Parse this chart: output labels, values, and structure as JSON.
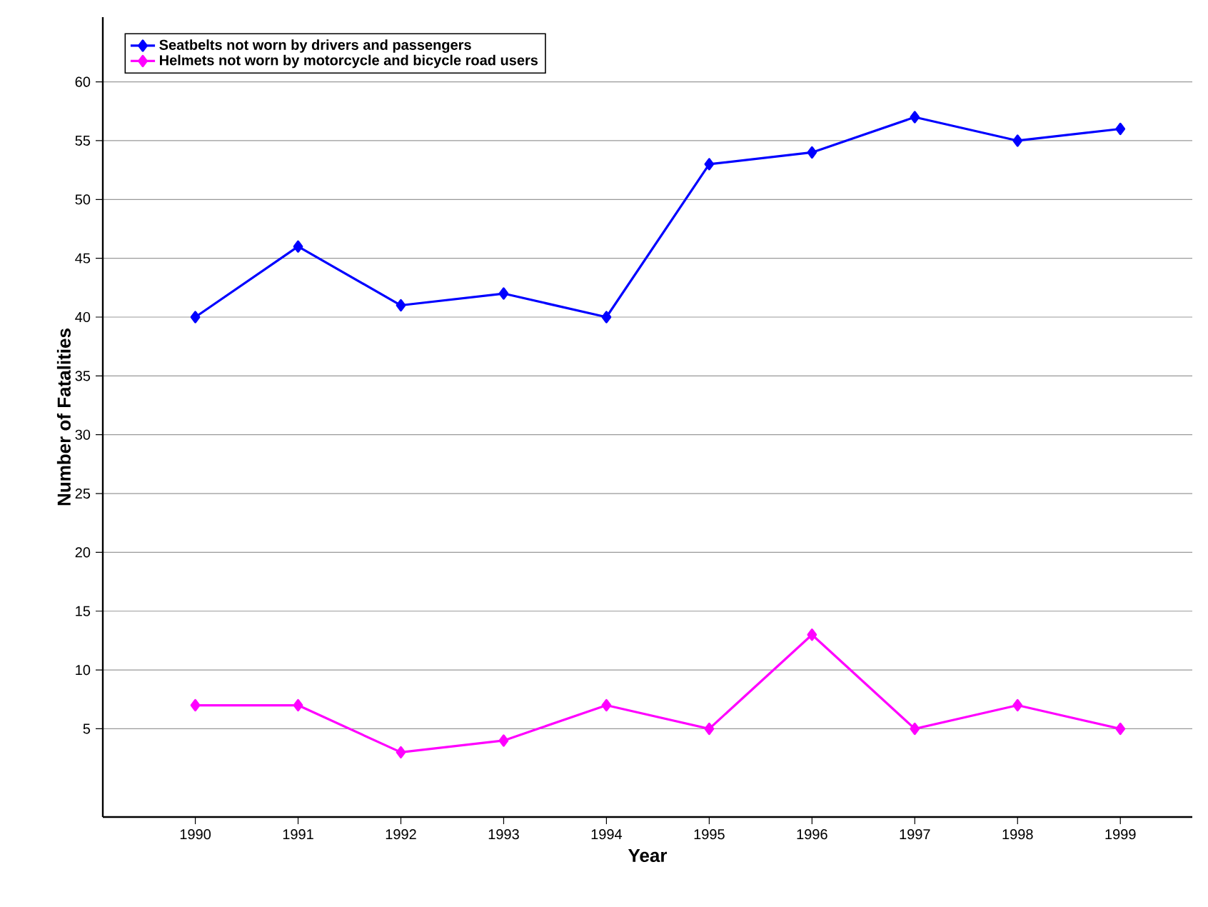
{
  "chart_data": {
    "type": "line",
    "xlabel": "Year",
    "ylabel": "Number of Fatalities",
    "categories": [
      "1990",
      "1991",
      "1992",
      "1993",
      "1994",
      "1995",
      "1996",
      "1997",
      "1998",
      "1999"
    ],
    "series": [
      {
        "name": "Seatbelts not worn by drivers and passengers",
        "color": "#0000ff",
        "values": [
          40,
          46,
          41,
          42,
          40,
          53,
          54,
          57,
          55,
          56
        ]
      },
      {
        "name": "Helmets not worn by motorcycle and bicycle road users",
        "color": "#ff00ff",
        "values": [
          7,
          7,
          3,
          4,
          7,
          5,
          13,
          5,
          7,
          5
        ]
      }
    ],
    "ylim": [
      -2.5,
      65.5
    ],
    "yticks": [
      5,
      10,
      15,
      20,
      25,
      30,
      35,
      40,
      45,
      50,
      55,
      60
    ],
    "grid": "y",
    "legend": "top left",
    "marker": "diamond",
    "line_style": "solid"
  }
}
